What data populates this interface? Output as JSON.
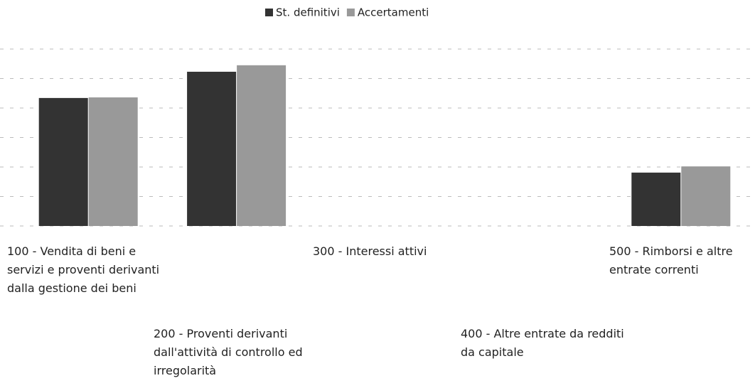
{
  "chart_data": {
    "type": "bar",
    "categories": [
      "100 - Vendita di beni e servizi e proventi derivanti dalla gestione dei beni",
      "200 - Proventi derivanti dall'attività di controllo ed irregolarità",
      "300 - Interessi attivi",
      "400 - Altre entrate da redditi da capitale",
      "500 - Rimborsi e altre entrate correnti"
    ],
    "series": [
      {
        "name": "St. definitivi",
        "color": "#333333",
        "values": [
          4.34,
          5.23,
          0,
          0,
          1.81
        ]
      },
      {
        "name": "Accertamenti",
        "color": "#999999",
        "values": [
          4.36,
          5.45,
          0,
          0,
          2.02
        ]
      }
    ],
    "ylim": [
      0,
      6
    ],
    "yticks": [
      0,
      1,
      2,
      3,
      4,
      5,
      6
    ],
    "grid": true,
    "legend": "top"
  }
}
